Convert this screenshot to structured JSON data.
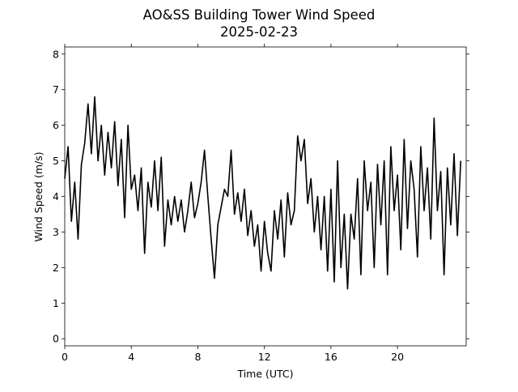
{
  "chart_data": {
    "type": "line",
    "title": "AO&SS Building Tower Wind Speed",
    "subtitle": "2025-02-23",
    "x_label": "Time (UTC)",
    "y_label": "Wind Speed (m/s)",
    "x": [
      0,
      0.2,
      0.4,
      0.6,
      0.8,
      1,
      1.2,
      1.4,
      1.6,
      1.8,
      2,
      2.2,
      2.4,
      2.6,
      2.8,
      3,
      3.2,
      3.4,
      3.6,
      3.8,
      4,
      4.2,
      4.4,
      4.6,
      4.8,
      5,
      5.2,
      5.4,
      5.6,
      5.8,
      6,
      6.2,
      6.4,
      6.6,
      6.8,
      7,
      7.2,
      7.4,
      7.6,
      7.8,
      8,
      8.2,
      8.4,
      8.6,
      8.8,
      9,
      9.2,
      9.4,
      9.6,
      9.8,
      10,
      10.2,
      10.4,
      10.6,
      10.8,
      11,
      11.2,
      11.4,
      11.6,
      11.8,
      12,
      12.2,
      12.4,
      12.6,
      12.8,
      13,
      13.2,
      13.4,
      13.6,
      13.8,
      14,
      14.2,
      14.4,
      14.6,
      14.8,
      15,
      15.2,
      15.4,
      15.6,
      15.8,
      16,
      16.2,
      16.4,
      16.6,
      16.8,
      17,
      17.2,
      17.4,
      17.6,
      17.8,
      18,
      18.2,
      18.4,
      18.6,
      18.8,
      19,
      19.2,
      19.4,
      19.6,
      19.8,
      20,
      20.2,
      20.4,
      20.6,
      20.8,
      21,
      21.2,
      21.4,
      21.6,
      21.8,
      22,
      22.2,
      22.4,
      22.6,
      22.8,
      23,
      23.2,
      23.4,
      23.6,
      23.8
    ],
    "series": [
      {
        "name": "Wind Speed",
        "color": "#000000",
        "values": [
          4.5,
          5.4,
          3.3,
          4.4,
          2.8,
          4.9,
          5.5,
          6.6,
          5.2,
          6.8,
          5.0,
          6.0,
          4.6,
          5.8,
          4.8,
          6.1,
          4.3,
          5.6,
          3.4,
          6.0,
          4.2,
          4.6,
          3.6,
          4.8,
          2.4,
          4.4,
          3.7,
          5.0,
          3.6,
          5.1,
          2.6,
          3.9,
          3.2,
          4.0,
          3.3,
          3.9,
          3.0,
          3.6,
          4.4,
          3.4,
          3.8,
          4.4,
          5.3,
          4.0,
          2.8,
          1.7,
          3.2,
          3.7,
          4.2,
          4.0,
          5.3,
          3.5,
          4.1,
          3.3,
          4.2,
          2.9,
          3.6,
          2.6,
          3.2,
          1.9,
          3.3,
          2.4,
          1.9,
          3.6,
          2.8,
          3.9,
          2.3,
          4.1,
          3.2,
          3.6,
          5.7,
          5.0,
          5.6,
          3.8,
          4.5,
          3.0,
          4.0,
          2.5,
          4.0,
          1.9,
          4.2,
          1.6,
          5.0,
          2.0,
          3.5,
          1.4,
          3.5,
          2.8,
          4.5,
          1.8,
          5.0,
          3.6,
          4.4,
          2.0,
          4.9,
          3.2,
          5.0,
          1.8,
          5.4,
          3.6,
          4.6,
          2.5,
          5.6,
          3.1,
          5.0,
          4.2,
          2.3,
          5.4,
          3.6,
          4.8,
          2.8,
          6.2,
          3.6,
          4.7,
          1.8,
          4.8,
          3.2,
          5.2,
          2.9,
          5.0
        ]
      }
    ],
    "xlim": [
      0,
      24.13
    ],
    "xticks": [
      0,
      4,
      8,
      12,
      16,
      20
    ],
    "ylim": [
      -0.2,
      8.2
    ],
    "yticks": [
      0,
      1,
      2,
      3,
      4,
      5,
      6,
      7,
      8
    ]
  }
}
